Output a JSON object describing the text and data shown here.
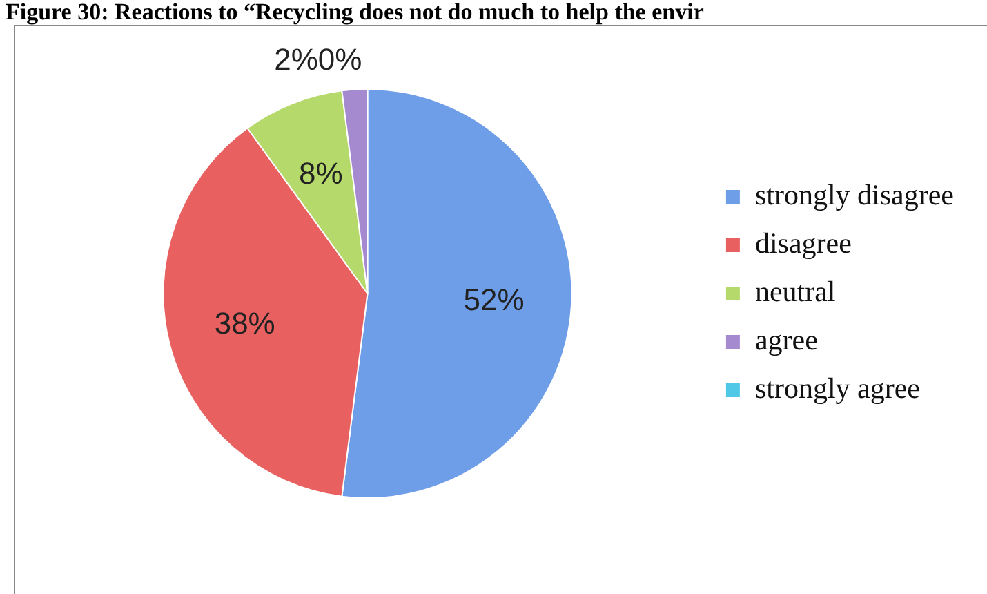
{
  "chart_data": {
    "type": "pie",
    "title": "Figure 30: Reactions to “Recycling does not do much to help the envir",
    "categories": [
      "strongly disagree",
      "disagree",
      "neutral",
      "agree",
      "strongly agree"
    ],
    "values": [
      52,
      38,
      8,
      2,
      0
    ],
    "colors": [
      "#6f9ee8",
      "#e8605f",
      "#b5d96a",
      "#a58ad0",
      "#4fc8e8"
    ],
    "value_labels": [
      "52%",
      "38%",
      "8%",
      "2%",
      "0%"
    ],
    "legend": "right"
  }
}
